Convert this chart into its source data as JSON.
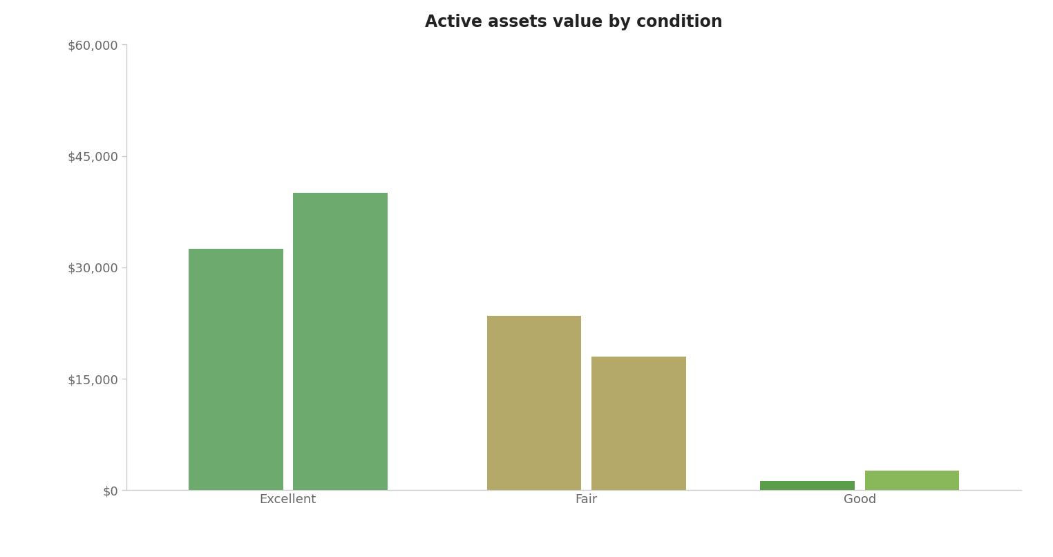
{
  "title": "Active assets value by condition",
  "categories": [
    "Excellent",
    "Fair",
    "Good"
  ],
  "bar1_values": [
    32500,
    23500,
    1200
  ],
  "bar2_values": [
    40000,
    18000,
    2600
  ],
  "colors_by_group": {
    "Excellent": [
      "#6daa6d",
      "#6daa6d"
    ],
    "Fair": [
      "#b5a969",
      "#b5a969"
    ],
    "Good": [
      "#5a9e4a",
      "#88b85a"
    ]
  },
  "ylim": [
    0,
    60000
  ],
  "yticks": [
    0,
    15000,
    30000,
    45000,
    60000
  ],
  "ytick_labels": [
    "$0",
    "$15,000",
    "$30,000",
    "$45,000",
    "$60,000"
  ],
  "bar_width": 0.38,
  "group_centers": [
    0.0,
    1.2,
    2.3
  ],
  "bar_gap": 0.04,
  "background_color": "#ffffff",
  "title_fontsize": 17,
  "tick_fontsize": 13,
  "axis_color": "#999999",
  "tick_color": "#666666",
  "spine_color": "#cccccc"
}
